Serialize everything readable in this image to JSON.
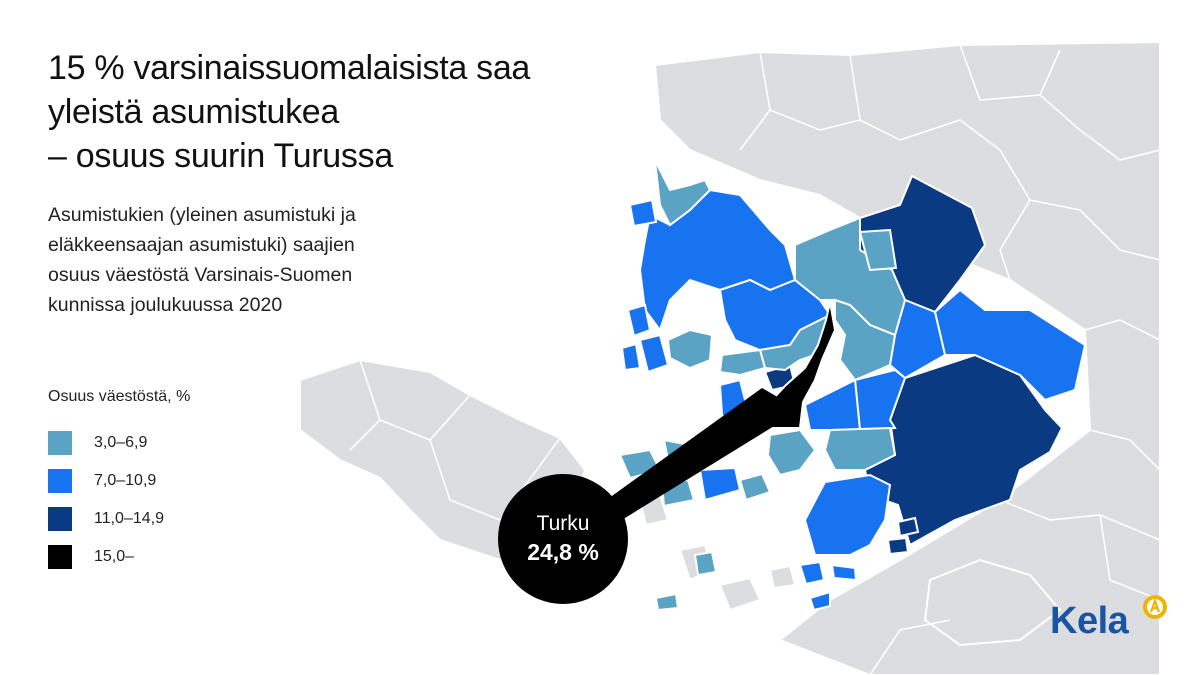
{
  "title_lines": [
    "15 % varsinaissuomalaisista saa",
    "yleistä asumistukea",
    "– osuus suurin Turussa"
  ],
  "subtitle_lines": [
    "Asumistukien (yleinen asumistuki ja",
    "eläkkeensaajan asumistuki) saajien",
    "osuus väestöstä Varsinais-Suomen",
    "kunnissa joulukuussa 2020"
  ],
  "legend": {
    "title": "Osuus väestöstä, %",
    "items": [
      {
        "label": "3,0–6,9",
        "color": "#5ba3c4",
        "class": "c1"
      },
      {
        "label": "7,0–10,9",
        "color": "#1873f0",
        "class": "c2"
      },
      {
        "label": "11,0–14,9",
        "color": "#0a3a82",
        "class": "c3"
      },
      {
        "label": "15,0–",
        "color": "#000000",
        "class": "c4"
      }
    ]
  },
  "callout": {
    "name": "Turku",
    "value": "24,8 %"
  },
  "logo": {
    "text": "Kela",
    "color": "#1a55a5",
    "mark_color": "#f0b400"
  },
  "colors": {
    "background_land": "#dcdde0",
    "border": "#ffffff"
  }
}
